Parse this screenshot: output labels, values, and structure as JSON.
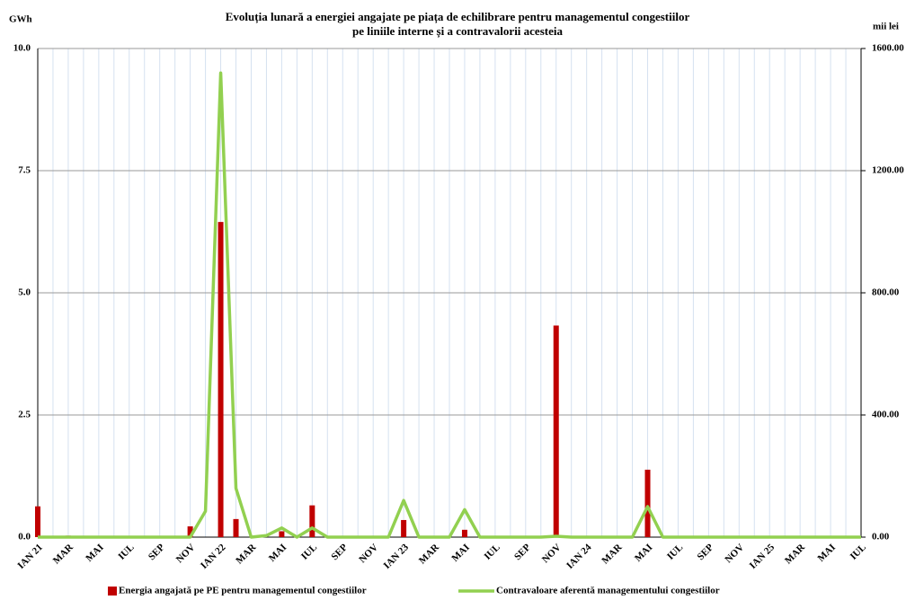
{
  "chart_data": {
    "type": "bar_line",
    "title": [
      "Evoluția lunară a energiei angajate pe piața de echilibrare pentru managementul congestiilor",
      "pe liniile interne și a contravalorii acesteia"
    ],
    "y_label": "GWh",
    "y2_label": "mii lei",
    "categories": [
      "IAN 21",
      null,
      "MAR",
      null,
      "MAI",
      null,
      "IUL",
      null,
      "SEP",
      null,
      "NOV",
      null,
      "IAN 22",
      null,
      "MAR",
      null,
      "MAI",
      null,
      "IUL",
      null,
      "SEP",
      null,
      "NOV",
      null,
      "IAN 23",
      null,
      "MAR",
      null,
      "MAI",
      null,
      "IUL",
      null,
      "SEP",
      null,
      "NOV",
      null,
      "IAN 24",
      null,
      "MAR",
      null,
      "MAI",
      null,
      "IUL",
      null,
      "SEP",
      null,
      "NOV",
      null,
      "IAN 25",
      null,
      "MAR",
      null,
      "MAI",
      null,
      "IUL"
    ],
    "series": [
      {
        "name": "Energia angajată pe PE pentru managementul congestiilor",
        "color": "#c00000",
        "kind": "bar",
        "values": [
          0.63,
          0,
          0.03,
          0,
          0,
          0,
          0,
          0,
          0,
          0,
          0.22,
          0,
          6.45,
          0.37,
          0,
          0,
          0.12,
          0,
          0.65,
          0,
          0,
          0,
          0,
          0,
          0.35,
          0,
          0,
          0,
          0.15,
          0,
          0,
          0,
          0,
          0,
          4.33,
          0,
          0,
          0,
          0,
          0,
          1.38,
          0,
          0,
          0,
          0,
          0,
          0,
          0,
          0,
          0,
          0,
          0,
          0,
          0,
          0
        ]
      },
      {
        "name": "Contravaloare aferentă managementului congestiilor",
        "color": "#92d050",
        "kind": "line",
        "axis": "y2",
        "values": [
          0,
          0,
          0,
          0,
          0,
          0,
          0,
          0,
          0,
          0,
          0,
          85,
          1520,
          160,
          0,
          5,
          30,
          0,
          30,
          0,
          0,
          0,
          0,
          0,
          120,
          0,
          0,
          0,
          90,
          0,
          0,
          0,
          0,
          0,
          3,
          0,
          0,
          0,
          0,
          0,
          100,
          0,
          0,
          0,
          0,
          0,
          0,
          0,
          0,
          0,
          0,
          0,
          0,
          0,
          0
        ]
      }
    ],
    "ylim": [
      0,
      10
    ],
    "yticks": [
      {
        "value": 0,
        "label": "0.0"
      },
      {
        "value": 2.5,
        "label": "2.5"
      },
      {
        "value": 5,
        "label": "5.0"
      },
      {
        "value": 7.5,
        "label": "7.5"
      },
      {
        "value": 10,
        "label": "10.0"
      }
    ],
    "y2lim": [
      0,
      1600
    ],
    "y2ticks": [
      {
        "value": 0,
        "label": "0.00"
      },
      {
        "value": 400,
        "label": "400.00"
      },
      {
        "value": 800,
        "label": "800.00"
      },
      {
        "value": 1200,
        "label": "1200.00"
      },
      {
        "value": 1600,
        "label": "1600.00"
      }
    ],
    "grid": true
  }
}
